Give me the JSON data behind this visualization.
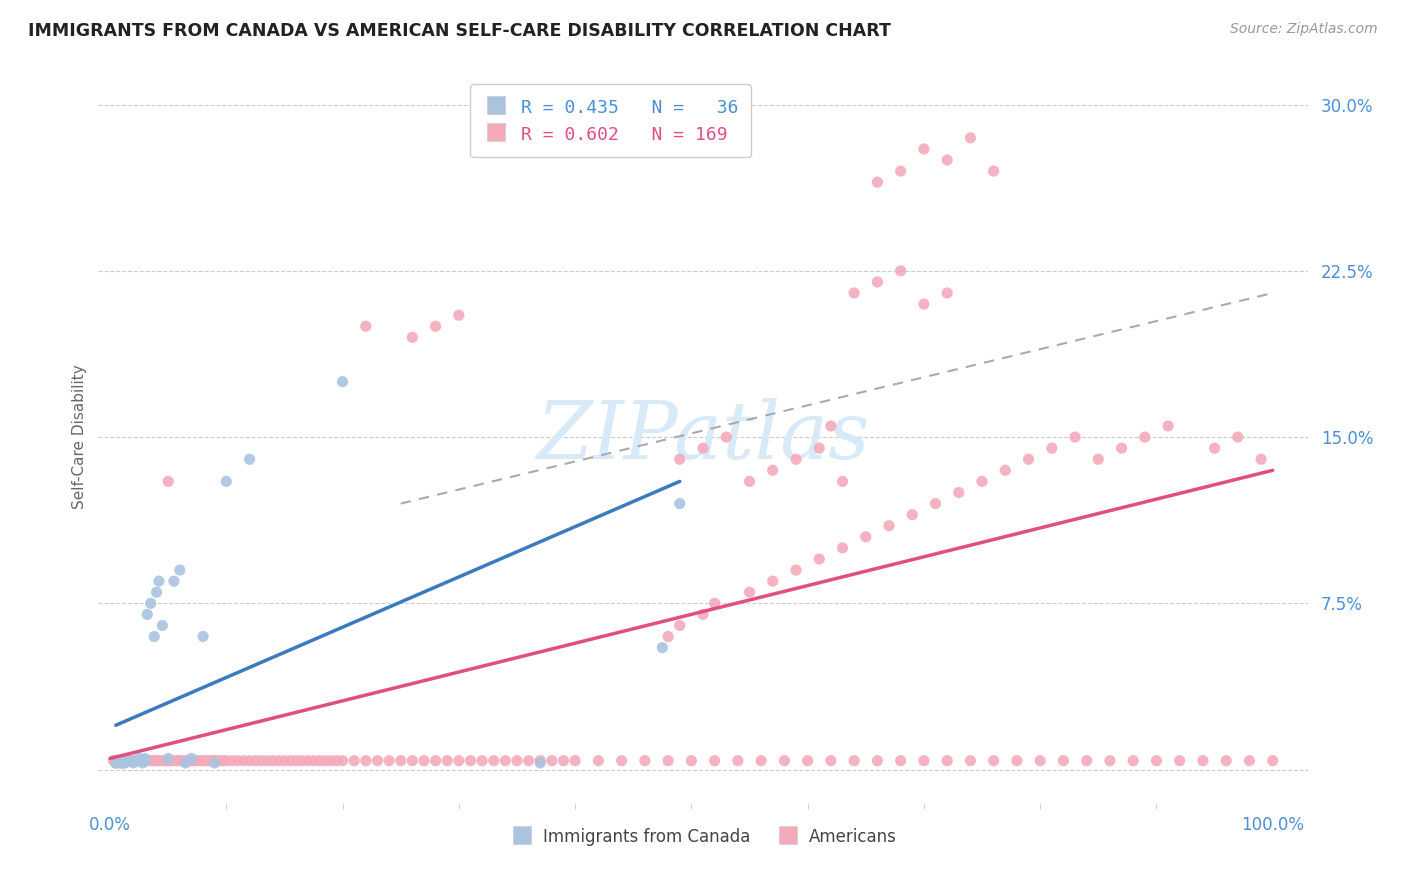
{
  "title": "IMMIGRANTS FROM CANADA VS AMERICAN SELF-CARE DISABILITY CORRELATION CHART",
  "source": "Source: ZipAtlas.com",
  "ylabel": "Self-Care Disability",
  "r_blue": 0.435,
  "n_blue": 36,
  "r_pink": 0.602,
  "n_pink": 169,
  "blue_color": "#aac4e0",
  "pink_color": "#f4aabb",
  "blue_line_color": "#3a7abf",
  "pink_line_color": "#e0507a",
  "dash_color": "#aaaaaa",
  "watermark_color": "#d8eaf8",
  "legend_label_blue": "Immigrants from Canada",
  "legend_label_pink": "Americans",
  "blue_scatter_x": [
    0.005,
    0.008,
    0.01,
    0.01,
    0.012,
    0.013,
    0.015,
    0.015,
    0.018,
    0.02,
    0.02,
    0.022,
    0.025,
    0.025,
    0.028,
    0.03,
    0.03,
    0.032,
    0.035,
    0.038,
    0.04,
    0.042,
    0.045,
    0.05,
    0.055,
    0.06,
    0.065,
    0.07,
    0.08,
    0.09,
    0.1,
    0.12,
    0.2,
    0.37,
    0.475,
    0.49
  ],
  "blue_scatter_y": [
    0.003,
    0.003,
    0.003,
    0.003,
    0.003,
    0.003,
    0.004,
    0.005,
    0.004,
    0.004,
    0.003,
    0.004,
    0.004,
    0.005,
    0.003,
    0.005,
    0.004,
    0.07,
    0.075,
    0.06,
    0.08,
    0.085,
    0.065,
    0.005,
    0.085,
    0.09,
    0.003,
    0.005,
    0.06,
    0.003,
    0.13,
    0.14,
    0.175,
    0.003,
    0.055,
    0.12
  ],
  "pink_scatter_x": [
    0.003,
    0.005,
    0.008,
    0.01,
    0.01,
    0.012,
    0.013,
    0.015,
    0.015,
    0.018,
    0.02,
    0.02,
    0.022,
    0.025,
    0.025,
    0.028,
    0.03,
    0.03,
    0.032,
    0.035,
    0.038,
    0.04,
    0.042,
    0.045,
    0.048,
    0.05,
    0.052,
    0.055,
    0.058,
    0.06,
    0.062,
    0.065,
    0.068,
    0.07,
    0.072,
    0.075,
    0.078,
    0.08,
    0.082,
    0.085,
    0.088,
    0.09,
    0.092,
    0.095,
    0.098,
    0.1,
    0.105,
    0.11,
    0.115,
    0.12,
    0.125,
    0.13,
    0.135,
    0.14,
    0.145,
    0.15,
    0.155,
    0.16,
    0.165,
    0.17,
    0.175,
    0.18,
    0.185,
    0.19,
    0.195,
    0.2,
    0.21,
    0.22,
    0.23,
    0.24,
    0.25,
    0.26,
    0.27,
    0.28,
    0.29,
    0.3,
    0.31,
    0.32,
    0.33,
    0.34,
    0.35,
    0.36,
    0.37,
    0.38,
    0.39,
    0.4,
    0.42,
    0.44,
    0.46,
    0.48,
    0.5,
    0.52,
    0.54,
    0.56,
    0.58,
    0.6,
    0.62,
    0.64,
    0.66,
    0.68,
    0.7,
    0.72,
    0.74,
    0.76,
    0.78,
    0.8,
    0.82,
    0.84,
    0.86,
    0.88,
    0.9,
    0.92,
    0.94,
    0.96,
    0.98,
    1.0,
    0.48,
    0.49,
    0.51,
    0.52,
    0.55,
    0.57,
    0.59,
    0.61,
    0.63,
    0.65,
    0.67,
    0.69,
    0.71,
    0.73,
    0.75,
    0.77,
    0.79,
    0.81,
    0.83,
    0.85,
    0.87,
    0.89,
    0.91,
    0.95,
    0.97,
    0.99,
    0.66,
    0.68,
    0.7,
    0.72,
    0.74,
    0.76,
    0.64,
    0.66,
    0.68,
    0.7,
    0.72,
    0.55,
    0.57,
    0.59,
    0.61,
    0.63,
    0.26,
    0.28,
    0.3,
    0.49,
    0.51,
    0.53,
    0.005,
    0.005,
    0.05,
    0.22,
    0.62
  ],
  "pink_scatter_y": [
    0.004,
    0.004,
    0.004,
    0.004,
    0.004,
    0.004,
    0.004,
    0.004,
    0.004,
    0.004,
    0.004,
    0.004,
    0.004,
    0.004,
    0.004,
    0.004,
    0.004,
    0.004,
    0.004,
    0.004,
    0.004,
    0.004,
    0.004,
    0.004,
    0.004,
    0.004,
    0.004,
    0.004,
    0.004,
    0.004,
    0.004,
    0.004,
    0.004,
    0.004,
    0.004,
    0.004,
    0.004,
    0.004,
    0.004,
    0.004,
    0.004,
    0.004,
    0.004,
    0.004,
    0.004,
    0.004,
    0.004,
    0.004,
    0.004,
    0.004,
    0.004,
    0.004,
    0.004,
    0.004,
    0.004,
    0.004,
    0.004,
    0.004,
    0.004,
    0.004,
    0.004,
    0.004,
    0.004,
    0.004,
    0.004,
    0.004,
    0.004,
    0.004,
    0.004,
    0.004,
    0.004,
    0.004,
    0.004,
    0.004,
    0.004,
    0.004,
    0.004,
    0.004,
    0.004,
    0.004,
    0.004,
    0.004,
    0.004,
    0.004,
    0.004,
    0.004,
    0.004,
    0.004,
    0.004,
    0.004,
    0.004,
    0.004,
    0.004,
    0.004,
    0.004,
    0.004,
    0.004,
    0.004,
    0.004,
    0.004,
    0.004,
    0.004,
    0.004,
    0.004,
    0.004,
    0.004,
    0.004,
    0.004,
    0.004,
    0.004,
    0.004,
    0.004,
    0.004,
    0.004,
    0.004,
    0.004,
    0.06,
    0.065,
    0.07,
    0.075,
    0.08,
    0.085,
    0.09,
    0.095,
    0.1,
    0.105,
    0.11,
    0.115,
    0.12,
    0.125,
    0.13,
    0.135,
    0.14,
    0.145,
    0.15,
    0.14,
    0.145,
    0.15,
    0.155,
    0.145,
    0.15,
    0.14,
    0.265,
    0.27,
    0.28,
    0.275,
    0.285,
    0.27,
    0.215,
    0.22,
    0.225,
    0.21,
    0.215,
    0.13,
    0.135,
    0.14,
    0.145,
    0.13,
    0.195,
    0.2,
    0.205,
    0.14,
    0.145,
    0.15,
    0.003,
    0.003,
    0.13,
    0.2,
    0.155
  ],
  "blue_line_x": [
    0.005,
    0.49
  ],
  "blue_line_y": [
    0.02,
    0.13
  ],
  "pink_line_x": [
    0.0,
    1.0
  ],
  "pink_line_y": [
    0.005,
    0.135
  ],
  "dash_line_x": [
    0.25,
    1.0
  ],
  "dash_line_y": [
    0.12,
    0.215
  ],
  "ytick_vals": [
    0.0,
    0.075,
    0.15,
    0.225,
    0.3
  ],
  "ytick_labels": [
    "",
    "7.5%",
    "15.0%",
    "22.5%",
    "30.0%"
  ],
  "xtick_vals": [
    0.0,
    1.0
  ],
  "xtick_labels": [
    "0.0%",
    "100.0%"
  ],
  "xlim": [
    -0.01,
    1.03
  ],
  "ylim": [
    -0.015,
    0.315
  ]
}
